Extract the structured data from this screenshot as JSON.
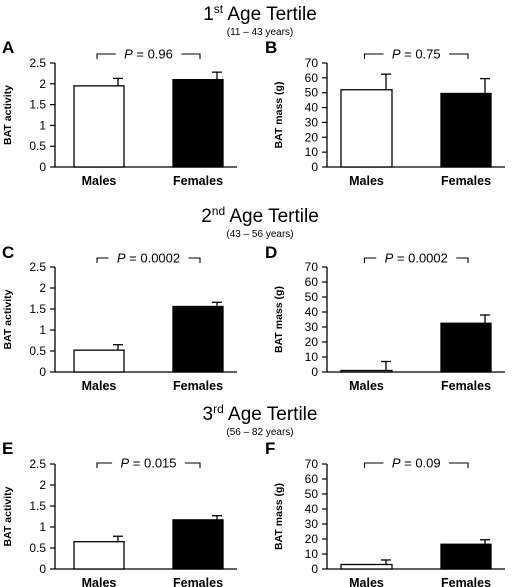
{
  "sections": [
    {
      "ordinal": "1",
      "sup": "st",
      "label": "Age Tertile",
      "range": "(11 – 43 years)"
    },
    {
      "ordinal": "2",
      "sup": "nd",
      "label": "Age Tertile",
      "range": "(43 – 56 years)"
    },
    {
      "ordinal": "3",
      "sup": "rd",
      "label": "Age Tertile",
      "range": "(56 – 82 years)"
    }
  ],
  "colors": {
    "males": "#ffffff",
    "females": "#000000",
    "axis": "#000000"
  },
  "chart_data": [
    {
      "panel": "A",
      "type": "bar",
      "ylabel": "BAT activity",
      "ylim": [
        0,
        2.5
      ],
      "yticks": [
        "0",
        "0.5",
        "1",
        "1.5",
        "2",
        "2.5"
      ],
      "categories": [
        "Males",
        "Females"
      ],
      "values": [
        1.95,
        2.1
      ],
      "errors": [
        0.18,
        0.18
      ],
      "annotation": {
        "p_label": "P",
        "p_value": "= 0.96"
      }
    },
    {
      "panel": "B",
      "type": "bar",
      "ylabel": "BAT mass (g)",
      "ylim": [
        0,
        70
      ],
      "yticks": [
        "0",
        "10",
        "20",
        "30",
        "40",
        "50",
        "60",
        "70"
      ],
      "categories": [
        "Males",
        "Females"
      ],
      "values": [
        52,
        49.5
      ],
      "errors": [
        10.5,
        10
      ],
      "annotation": {
        "p_label": "P",
        "p_value": "= 0.75"
      }
    },
    {
      "panel": "C",
      "type": "bar",
      "ylabel": "BAT activity",
      "ylim": [
        0,
        2.5
      ],
      "yticks": [
        "0",
        "0.5",
        "1",
        "1.5",
        "2",
        "2.5"
      ],
      "categories": [
        "Males",
        "Females"
      ],
      "values": [
        0.52,
        1.56
      ],
      "errors": [
        0.13,
        0.1
      ],
      "annotation": {
        "p_label": "P",
        "p_value": "= 0.0002"
      }
    },
    {
      "panel": "D",
      "type": "bar",
      "ylabel": "BAT mass (g)",
      "ylim": [
        0,
        70
      ],
      "yticks": [
        "0",
        "10",
        "20",
        "30",
        "40",
        "50",
        "60",
        "70"
      ],
      "categories": [
        "Males",
        "Females"
      ],
      "values": [
        1,
        32.5
      ],
      "errors": [
        6,
        5.5
      ],
      "annotation": {
        "p_label": "P",
        "p_value": "= 0.0002"
      }
    },
    {
      "panel": "E",
      "type": "bar",
      "ylabel": "BAT activity",
      "ylim": [
        0,
        2.5
      ],
      "yticks": [
        "0",
        "0.5",
        "1",
        "1.5",
        "2",
        "2.5"
      ],
      "categories": [
        "Males",
        "Females"
      ],
      "values": [
        0.65,
        1.17
      ],
      "errors": [
        0.13,
        0.1
      ],
      "annotation": {
        "p_label": "P",
        "p_value": "= 0.015"
      }
    },
    {
      "panel": "F",
      "type": "bar",
      "ylabel": "BAT mass (g)",
      "ylim": [
        0,
        70
      ],
      "yticks": [
        "0",
        "10",
        "20",
        "30",
        "40",
        "50",
        "60",
        "70"
      ],
      "categories": [
        "Males",
        "Females"
      ],
      "values": [
        3,
        16.5
      ],
      "errors": [
        3,
        3
      ],
      "annotation": {
        "p_label": "P",
        "p_value": "= 0.09"
      }
    }
  ]
}
